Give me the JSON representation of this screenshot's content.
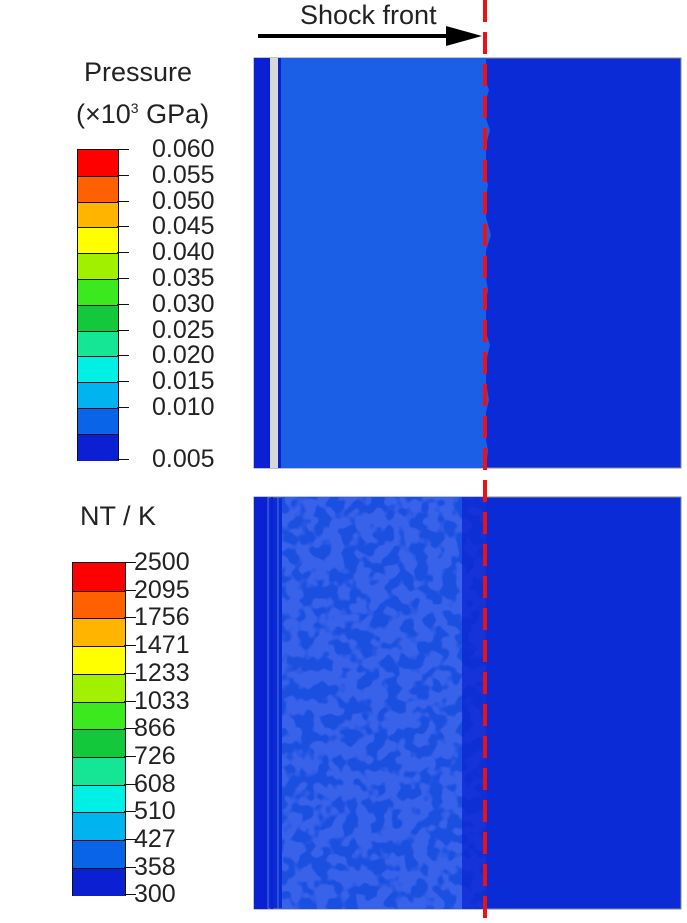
{
  "annotation": {
    "shock_front_label": "Shock front"
  },
  "pressure_legend": {
    "title_line1": "Pressure",
    "title_prefix": "(×10",
    "title_sup": "3",
    "title_suffix": " GPa)",
    "labels": [
      "0.060",
      "0.055",
      "0.050",
      "0.045",
      "0.040",
      "0.035",
      "0.030",
      "0.025",
      "0.020",
      "0.015",
      "0.010",
      "0.005"
    ],
    "colors": [
      "#ff0000",
      "#ff6000",
      "#ffb400",
      "#ffff00",
      "#a0f000",
      "#3ce81e",
      "#14c83c",
      "#14e696",
      "#00f0e6",
      "#00b4f0",
      "#0a64e8",
      "#0a20d2"
    ]
  },
  "temperature_legend": {
    "title": "NT / K",
    "labels": [
      "2500",
      "2095",
      "1756",
      "1471",
      "1233",
      "1033",
      "866",
      "726",
      "608",
      "510",
      "427",
      "358",
      "300"
    ],
    "colors": [
      "#ff0000",
      "#ff6000",
      "#ffb400",
      "#ffff00",
      "#a0f000",
      "#3ce81e",
      "#14c83c",
      "#14e696",
      "#00f0e6",
      "#00b4f0",
      "#0a64e8",
      "#0a20d2"
    ]
  },
  "panels": {
    "pressure": {
      "shocked_color": "#1a5fe6",
      "unshocked_color": "#0a2bd6",
      "piston_color": "#0a20d2",
      "stripe_color": "#d8d8d8"
    },
    "temperature": {
      "shocked_color": "#1a4fe0",
      "speckle_color": "#0a1ed0",
      "unshocked_color": "#0a2bd6",
      "piston_color": "#0a20d2"
    }
  }
}
